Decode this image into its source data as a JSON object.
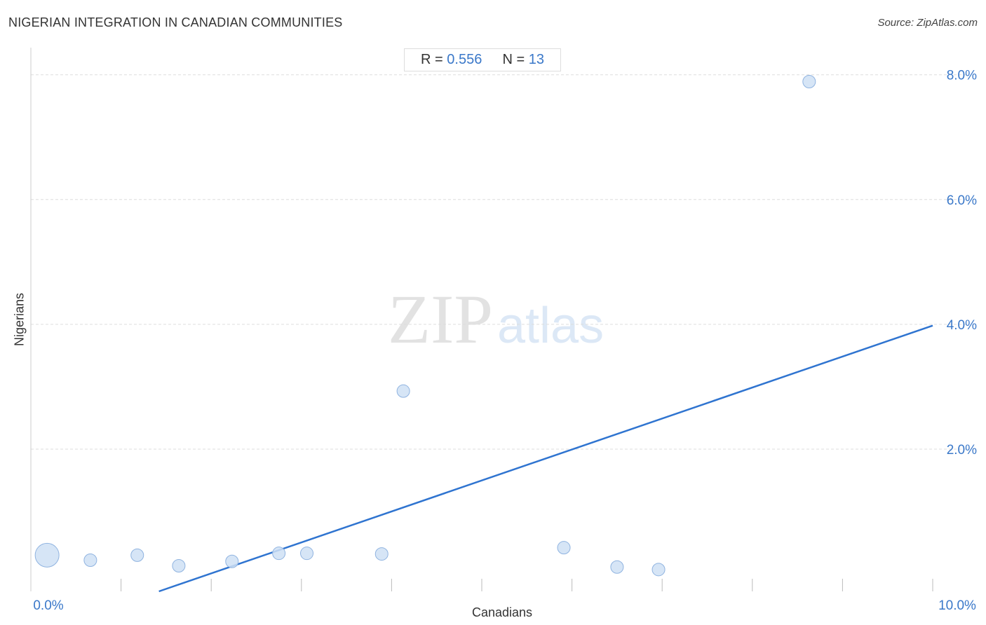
{
  "header": {
    "title": "NIGERIAN INTEGRATION IN CANADIAN COMMUNITIES",
    "source": "Source: ZipAtlas.com"
  },
  "stats": {
    "r_label": "R =",
    "r_value": "0.556",
    "n_label": "N =",
    "n_value": "13"
  },
  "watermark": {
    "zip": "ZIP",
    "atlas": "atlas"
  },
  "colors": {
    "accent": "#3a78c9",
    "trend_line": "#2f74d0",
    "point_fill": "#cfe0f5",
    "point_stroke": "#8fb3e0",
    "grid": "#dddddd",
    "tick_label": "#3a78c9"
  },
  "chart_data": {
    "type": "scatter",
    "title": "NIGERIAN INTEGRATION IN CANADIAN COMMUNITIES",
    "xlabel": "Canadians",
    "ylabel": "Nigerians",
    "xlim": [
      0,
      10
    ],
    "ylim": [
      -0.28,
      8.3
    ],
    "x_tick_labels": [
      {
        "value": 0,
        "label": "0.0%"
      },
      {
        "value": 10,
        "label": "10.0%"
      }
    ],
    "y_tick_labels": [
      {
        "value": 2,
        "label": "2.0%"
      },
      {
        "value": 4,
        "label": "4.0%"
      },
      {
        "value": 6,
        "label": "6.0%"
      },
      {
        "value": 8,
        "label": "8.0%"
      }
    ],
    "x_minor_ticks": [
      1,
      2,
      3,
      4,
      5,
      6,
      7,
      8,
      9,
      10
    ],
    "grid": true,
    "points": [
      {
        "x": 0.18,
        "y": 0.3,
        "size": "large"
      },
      {
        "x": 0.66,
        "y": 0.22,
        "size": "small"
      },
      {
        "x": 1.18,
        "y": 0.3,
        "size": "small"
      },
      {
        "x": 1.64,
        "y": 0.13,
        "size": "small"
      },
      {
        "x": 2.23,
        "y": 0.2,
        "size": "small"
      },
      {
        "x": 2.75,
        "y": 0.33,
        "size": "small"
      },
      {
        "x": 3.06,
        "y": 0.33,
        "size": "small"
      },
      {
        "x": 3.89,
        "y": 0.32,
        "size": "small"
      },
      {
        "x": 4.13,
        "y": 2.93,
        "size": "small"
      },
      {
        "x": 5.91,
        "y": 0.42,
        "size": "small"
      },
      {
        "x": 6.5,
        "y": 0.11,
        "size": "small"
      },
      {
        "x": 6.96,
        "y": 0.07,
        "size": "small"
      },
      {
        "x": 8.63,
        "y": 7.89,
        "size": "small"
      }
    ],
    "trend_line": {
      "x1": 1.42,
      "y1": -0.28,
      "x2": 10,
      "y2": 3.98
    }
  }
}
